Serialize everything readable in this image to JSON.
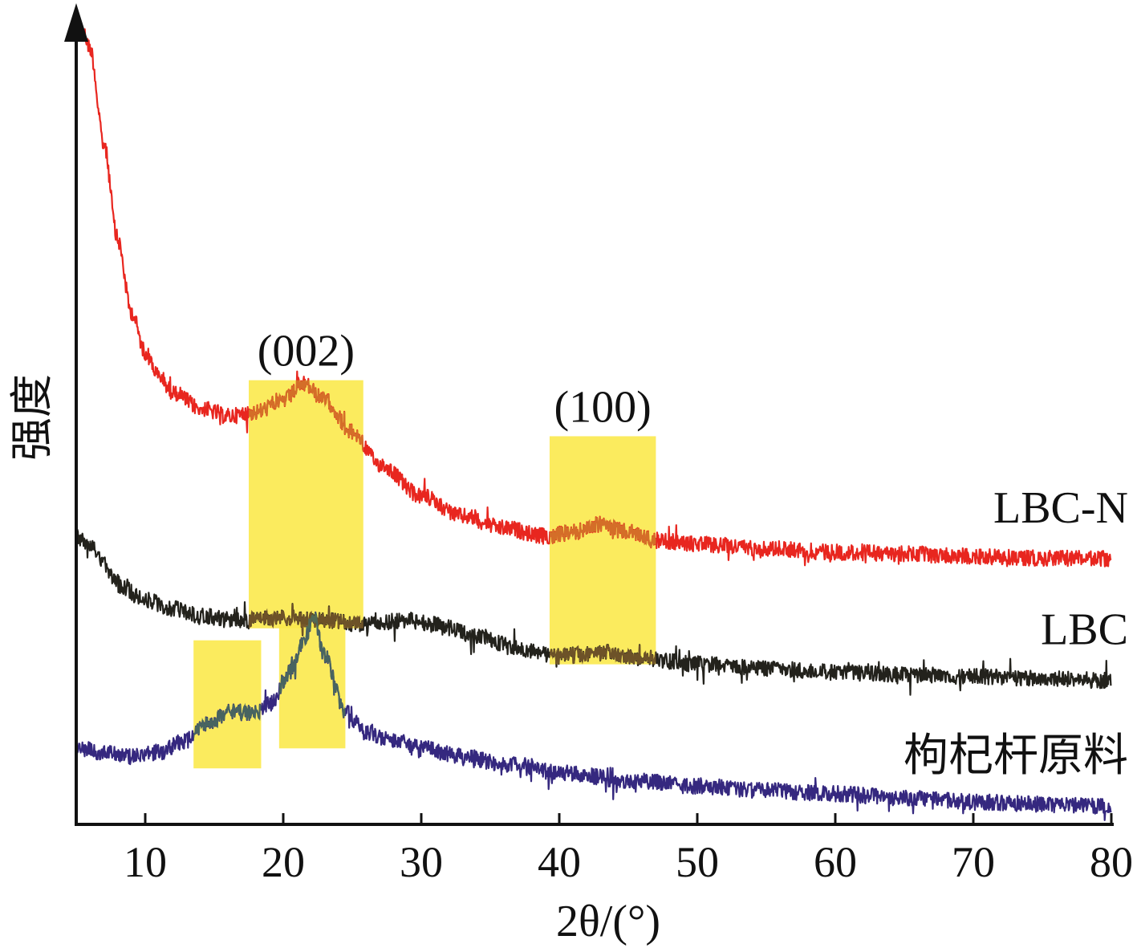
{
  "chart_data": {
    "type": "line",
    "title": "",
    "xlabel": "2θ/(°)",
    "ylabel": "强度",
    "xlim": [
      5,
      80
    ],
    "x_ticks": [
      10,
      20,
      30,
      40,
      50,
      60,
      70,
      80
    ],
    "y_ticks_shown": false,
    "grid": false,
    "legend": "inline labels at right end of each curve",
    "series": [
      {
        "name": "LBC-N",
        "color": "#e8261f",
        "x": [
          5.5,
          6,
          7,
          8,
          9,
          10,
          11,
          12,
          14,
          16,
          18,
          20,
          21.5,
          23,
          25,
          27,
          30,
          33,
          36,
          39,
          41,
          43,
          45,
          47,
          50,
          55,
          60,
          65,
          70,
          75,
          80
        ],
        "y": [
          0.99,
          0.97,
          0.85,
          0.73,
          0.64,
          0.59,
          0.56,
          0.54,
          0.52,
          0.51,
          0.515,
          0.53,
          0.55,
          0.53,
          0.49,
          0.45,
          0.41,
          0.385,
          0.37,
          0.36,
          0.365,
          0.375,
          0.365,
          0.355,
          0.35,
          0.345,
          0.34,
          0.338,
          0.335,
          0.333,
          0.332
        ]
      },
      {
        "name": "LBC",
        "color": "#23221c",
        "x": [
          5,
          6,
          7,
          8,
          10,
          12,
          14,
          17,
          20,
          23,
          26,
          29,
          31,
          34,
          37,
          40,
          43,
          46,
          50,
          55,
          60,
          65,
          70,
          75,
          80
        ],
        "y": [
          0.36,
          0.35,
          0.325,
          0.3,
          0.28,
          0.27,
          0.26,
          0.255,
          0.258,
          0.255,
          0.25,
          0.255,
          0.25,
          0.235,
          0.22,
          0.21,
          0.215,
          0.208,
          0.2,
          0.195,
          0.19,
          0.187,
          0.185,
          0.182,
          0.18
        ]
      },
      {
        "name": "枸杞杆原料",
        "color": "#35287f",
        "x": [
          5,
          7,
          9,
          11,
          13,
          14.5,
          16,
          18,
          19,
          20.5,
          21.5,
          22.2,
          23,
          24.5,
          26,
          28,
          30,
          33,
          36,
          40,
          45,
          50,
          55,
          60,
          65,
          70,
          75,
          80
        ],
        "y": [
          0.095,
          0.09,
          0.085,
          0.09,
          0.105,
          0.125,
          0.14,
          0.14,
          0.15,
          0.19,
          0.23,
          0.26,
          0.21,
          0.14,
          0.115,
          0.105,
          0.095,
          0.085,
          0.075,
          0.065,
          0.055,
          0.048,
          0.042,
          0.038,
          0.033,
          0.028,
          0.025,
          0.022
        ]
      }
    ],
    "highlight_regions": [
      {
        "label": "(002)",
        "x_range": [
          17.5,
          25.8
        ],
        "y_range": [
          0.245,
          0.555
        ]
      },
      {
        "label": "(100)",
        "x_range": [
          39.3,
          47.0
        ],
        "y_range": [
          0.2,
          0.485
        ]
      },
      {
        "label": "",
        "x_range": [
          13.5,
          18.4
        ],
        "y_range": [
          0.07,
          0.23
        ]
      },
      {
        "label": "",
        "x_range": [
          19.7,
          24.5
        ],
        "y_range": [
          0.095,
          0.25
        ]
      }
    ],
    "highlight_color": "#fbe94c"
  }
}
